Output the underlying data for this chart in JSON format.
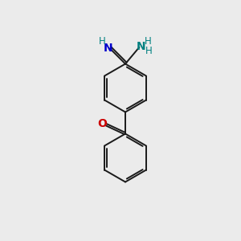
{
  "background_color": "#ebebeb",
  "bond_color": "#1a1a1a",
  "bond_width": 1.4,
  "N_color": "#0000cc",
  "NH_color": "#008080",
  "O_color": "#cc0000",
  "figsize": [
    3.0,
    3.0
  ],
  "dpi": 100,
  "xlim": [
    0,
    10
  ],
  "ylim": [
    0,
    10
  ]
}
